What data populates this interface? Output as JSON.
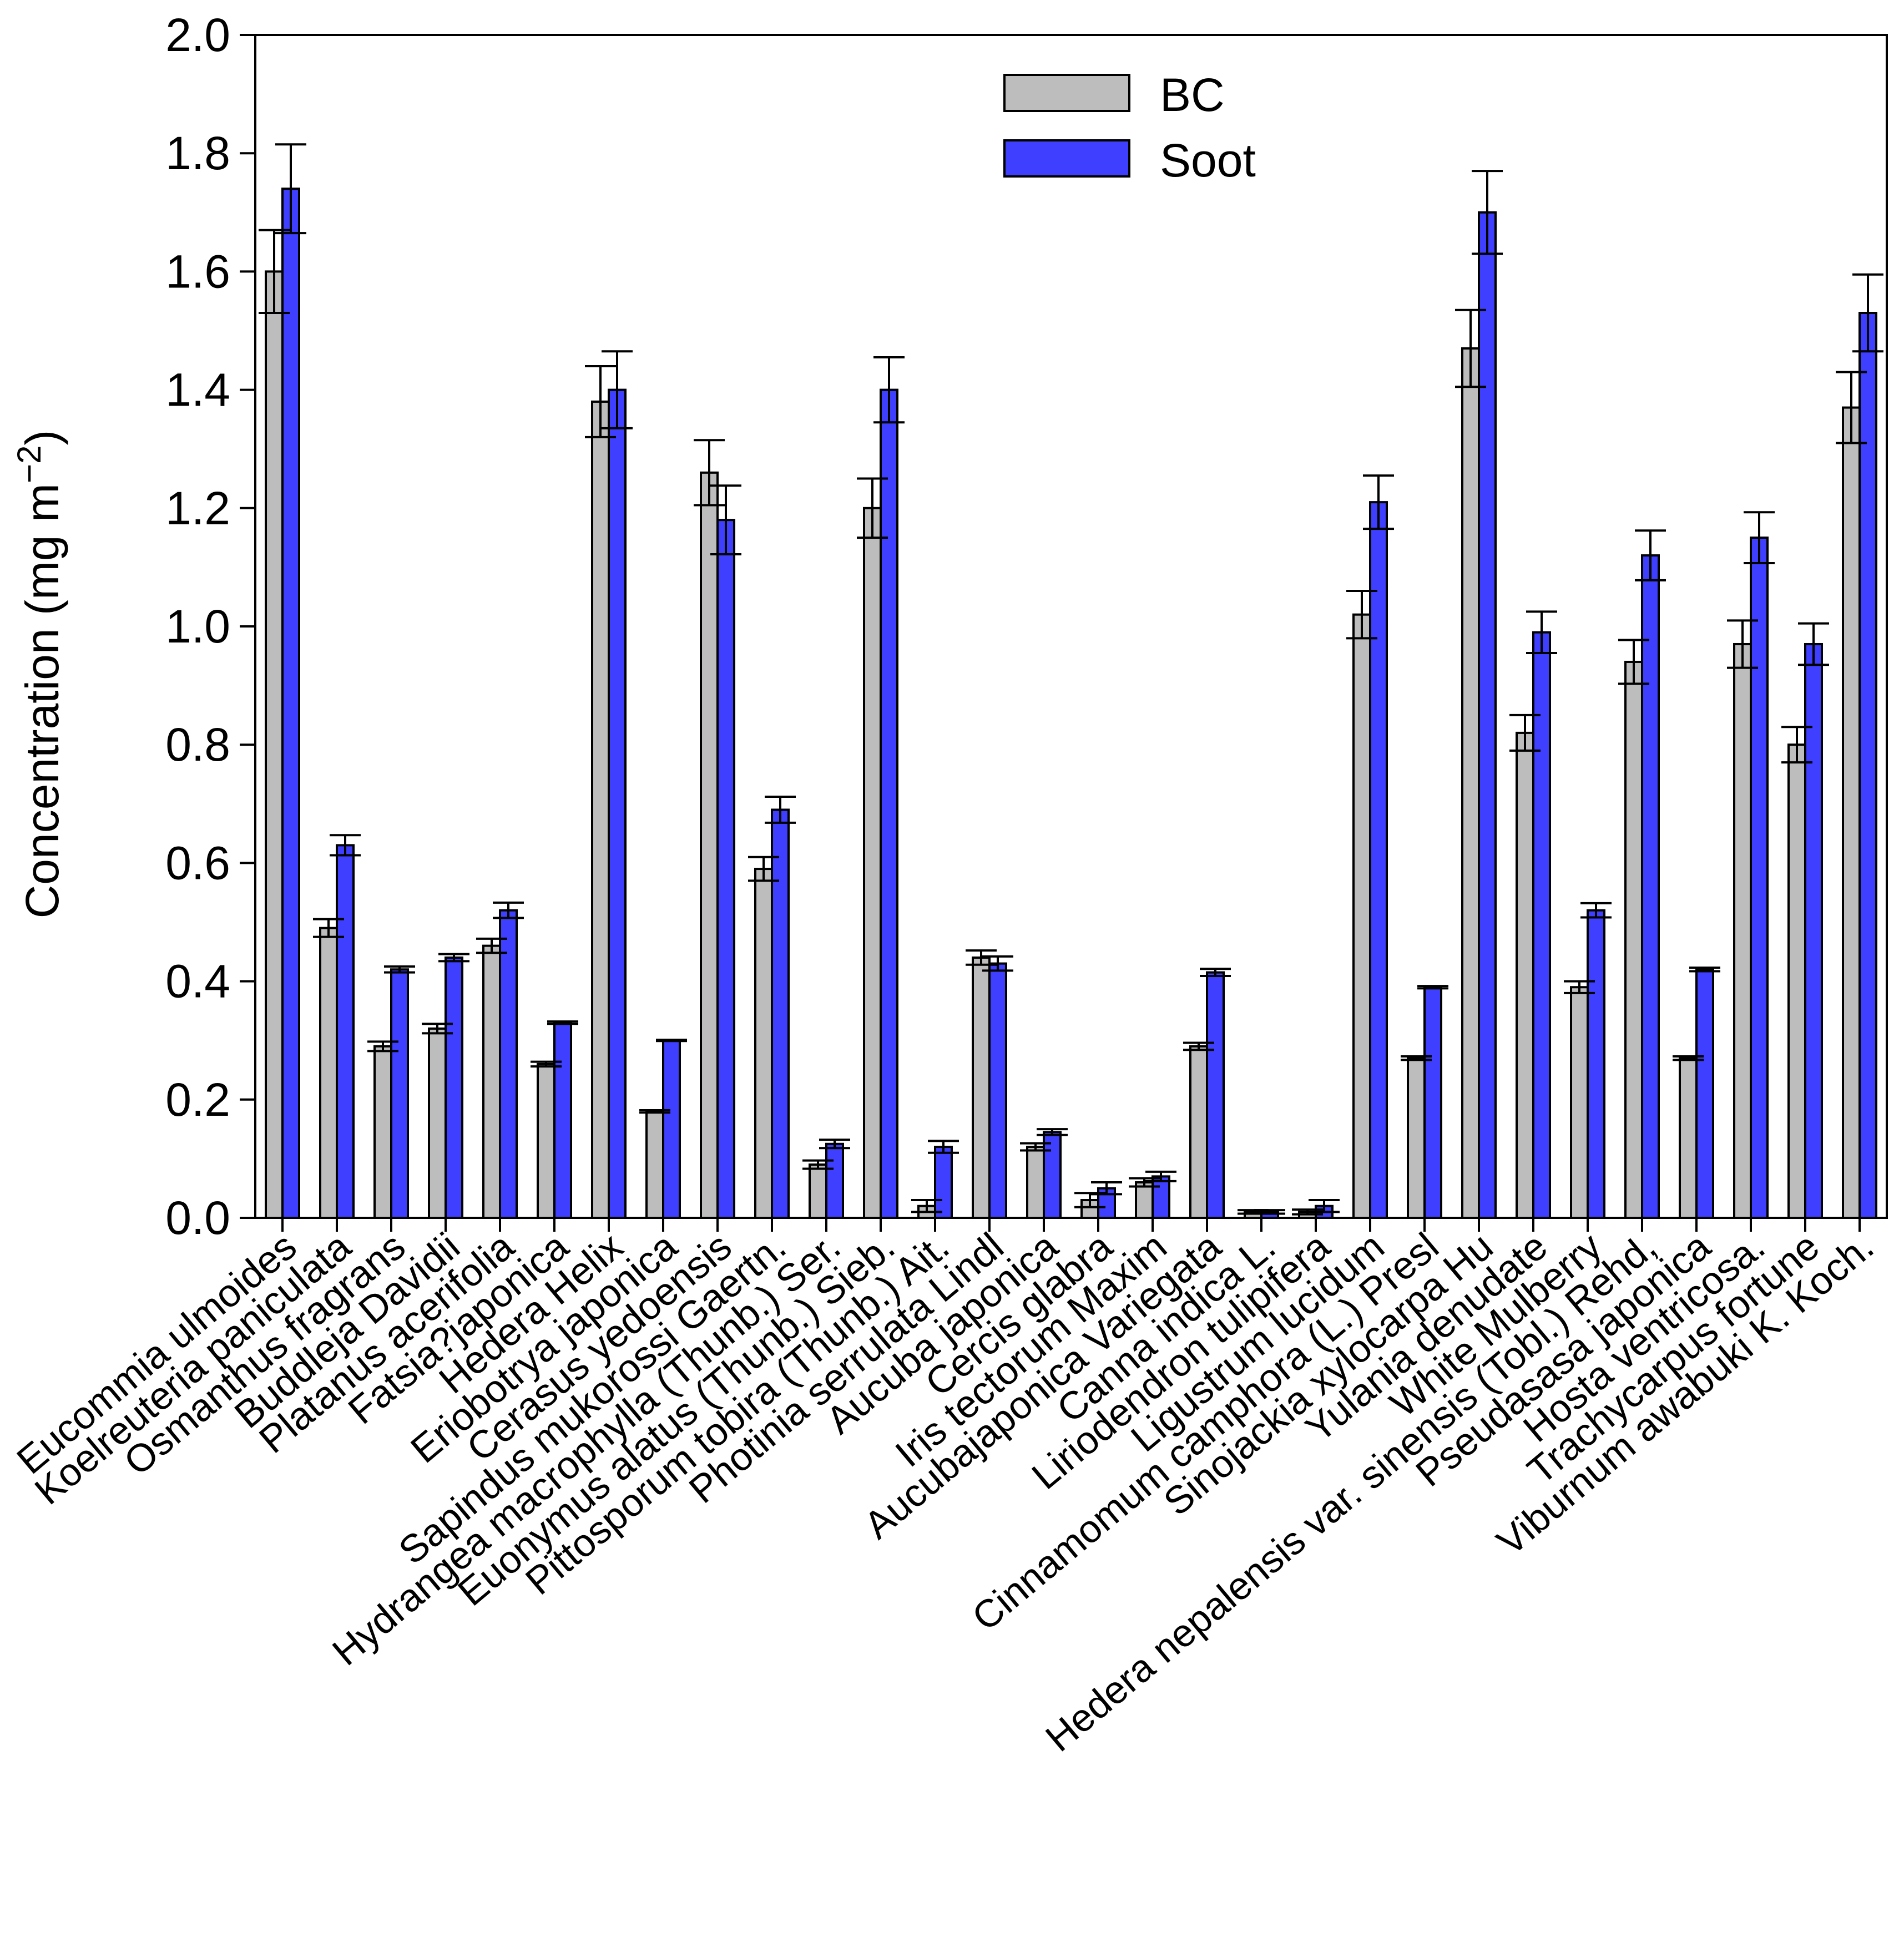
{
  "chart_data": {
    "type": "bar",
    "title": "",
    "xlabel": "",
    "ylabel": "Concentration (mg m",
    "ylabel_unit_sup": "−2",
    "ylabel_close": ")",
    "ylim": [
      0,
      2.0
    ],
    "yticks": [
      "0.0",
      "0.2",
      "0.4",
      "0.6",
      "0.8",
      "1.0",
      "1.2",
      "1.4",
      "1.6",
      "1.8",
      "2.0"
    ],
    "legend_position": "top-center",
    "categories": [
      "Eucommia ulmoides",
      "Koelreuteria paniculata",
      "Osmanthus fragrans",
      "Buddleja Davidii",
      "Platanus acerifolia",
      "Fatsia?japonica",
      "Hedera Helix",
      "Eriobotrya japonica",
      "Cerasus yedoensis",
      "Sapindus mukorossi Gaertn.",
      "Hydrangea macrophylla (Thunb.) Ser.",
      "Euonymus alatus (Thunb.) Sieb.",
      "Pittosporum tobira (Thunb.) Ait.",
      "Photinia serrulata Lindl",
      "Aucuba japonica",
      "Cercis glabra",
      "Iris tectorum Maxim",
      "Aucubajaponica Variegata",
      "Canna indica L.",
      "Liriodendron tulipifera",
      "Ligustrum lucidum",
      "Cinnamomum camphora (L.) Presl",
      "Sinojackia xylocarpa Hu",
      "Yulania denudate",
      "White Mulberry",
      "Hedera nepalensis var. sinensis (Tobl.) Rehd,",
      "Pseudasasa japonica",
      "Hosta ventricosa.",
      "Trachycarpus fortune",
      "Viburnum awabuki K. Koch."
    ],
    "series": [
      {
        "name": "BC",
        "color": "#bdbdbd",
        "values": [
          1.6,
          0.49,
          0.29,
          0.32,
          0.46,
          0.26,
          1.38,
          0.18,
          1.26,
          0.59,
          0.09,
          1.2,
          0.02,
          0.44,
          0.12,
          0.03,
          0.06,
          0.29,
          0.01,
          0.01,
          1.02,
          0.27,
          1.47,
          0.82,
          0.39,
          0.94,
          0.27,
          0.97,
          0.8,
          1.37
        ],
        "errors": [
          0.07,
          0.015,
          0.008,
          0.008,
          0.012,
          0.004,
          0.06,
          0.002,
          0.055,
          0.02,
          0.007,
          0.05,
          0.01,
          0.012,
          0.006,
          0.012,
          0.007,
          0.006,
          0.003,
          0.004,
          0.04,
          0.003,
          0.065,
          0.03,
          0.01,
          0.037,
          0.003,
          0.04,
          0.03,
          0.06
        ]
      },
      {
        "name": "Soot",
        "color": "#3f3fff",
        "values": [
          1.74,
          0.63,
          0.42,
          0.44,
          0.52,
          0.33,
          1.4,
          0.3,
          1.18,
          0.69,
          0.125,
          1.4,
          0.12,
          0.43,
          0.145,
          0.05,
          0.07,
          0.415,
          0.01,
          0.02,
          1.21,
          0.39,
          1.7,
          0.99,
          0.52,
          1.12,
          0.42,
          1.15,
          0.97,
          1.53
        ],
        "errors": [
          0.075,
          0.017,
          0.005,
          0.006,
          0.013,
          0.002,
          0.065,
          0.001,
          0.058,
          0.022,
          0.007,
          0.055,
          0.01,
          0.012,
          0.005,
          0.01,
          0.008,
          0.006,
          0.003,
          0.01,
          0.045,
          0.002,
          0.07,
          0.035,
          0.012,
          0.042,
          0.003,
          0.043,
          0.035,
          0.065
        ]
      }
    ]
  }
}
